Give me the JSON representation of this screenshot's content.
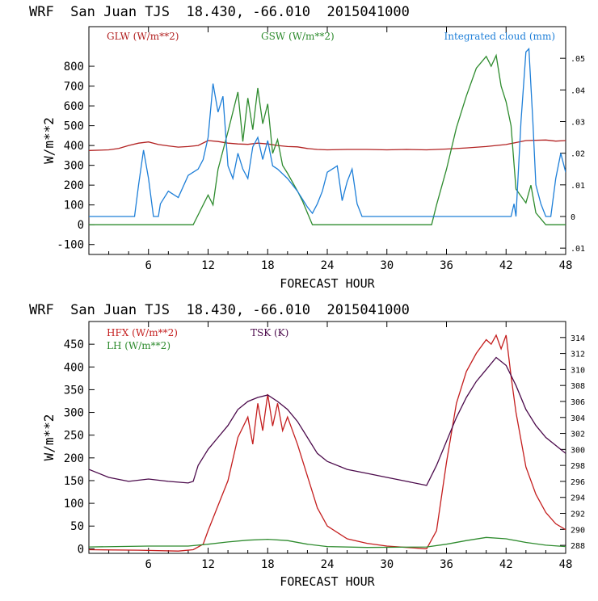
{
  "chart_data": [
    {
      "type": "line",
      "title": "WRF  San Juan TJS  18.430, -66.010  2015041000",
      "xlabel": "FORECAST HOUR",
      "ylabel": "W/m**2",
      "xlim": [
        0,
        48
      ],
      "ylim": [
        -150,
        1000
      ],
      "y2lim": [
        -0.012,
        0.06
      ],
      "xticks": [
        6,
        12,
        18,
        24,
        30,
        36,
        42,
        48
      ],
      "yticks": [
        -100,
        0,
        100,
        200,
        300,
        400,
        500,
        600,
        700,
        800
      ],
      "yticklabels": [
        "-100",
        "0",
        "100",
        "200",
        "300",
        "400",
        "500",
        "600",
        "700",
        "800"
      ],
      "y2ticks": [
        -0.01,
        0,
        0.01,
        0.02,
        0.03,
        0.04,
        0.05
      ],
      "y2ticklabels": [
        ".01",
        "0",
        ".01",
        ".02",
        ".03",
        ".04",
        ".05"
      ],
      "legend_position": "top",
      "series": [
        {
          "name": "GLW (W/m**2)",
          "color": "#b22222",
          "axis": "left",
          "x": [
            0,
            2,
            3,
            4,
            5,
            6,
            7,
            8,
            9,
            10,
            11,
            12,
            13,
            14,
            15,
            16,
            17,
            18,
            19,
            20,
            21,
            22,
            23,
            24,
            26,
            28,
            30,
            32,
            34,
            36,
            38,
            40,
            42,
            44,
            46,
            47,
            48
          ],
          "y": [
            375,
            378,
            385,
            400,
            412,
            418,
            405,
            398,
            392,
            395,
            400,
            425,
            420,
            412,
            408,
            406,
            412,
            408,
            400,
            395,
            393,
            385,
            380,
            378,
            380,
            380,
            378,
            380,
            378,
            382,
            388,
            395,
            405,
            425,
            428,
            422,
            425
          ]
        },
        {
          "name": "GSW (W/m**2)",
          "color": "#2e8b2e",
          "axis": "left",
          "x": [
            0,
            10.5,
            11,
            12,
            12.5,
            13,
            14,
            15,
            15.5,
            16,
            16.5,
            17,
            17.5,
            18,
            18.5,
            19,
            19.5,
            20,
            21,
            21.5,
            22,
            22.5,
            34.5,
            35,
            36,
            37,
            38,
            39,
            40,
            40.5,
            41,
            41.5,
            42,
            42.5,
            43,
            44,
            44.5,
            45,
            46,
            48
          ],
          "y": [
            0,
            0,
            50,
            150,
            100,
            280,
            470,
            670,
            420,
            640,
            480,
            690,
            510,
            610,
            360,
            430,
            300,
            260,
            170,
            120,
            60,
            0,
            0,
            100,
            280,
            490,
            650,
            790,
            850,
            800,
            855,
            700,
            620,
            500,
            180,
            110,
            200,
            60,
            0,
            0
          ]
        },
        {
          "name": "Integrated cloud (mm)",
          "color": "#1e7fd8",
          "axis": "right",
          "x": [
            0,
            4.6,
            5,
            5.5,
            6,
            6.5,
            7,
            7.2,
            8,
            9,
            10,
            11,
            11.5,
            12,
            12.5,
            13,
            13.5,
            14,
            14.5,
            15,
            15.5,
            16,
            16.5,
            17,
            17.5,
            18,
            18.5,
            19,
            20,
            21,
            22,
            22.5,
            23,
            23.5,
            24,
            25,
            25.5,
            26,
            26.5,
            27,
            27.5,
            42.5,
            42.8,
            43,
            43.5,
            44,
            44.3,
            44.7,
            45,
            45.5,
            46,
            46.5,
            47,
            47.5,
            48
          ],
          "y": [
            0,
            0,
            0.01,
            0.021,
            0.012,
            0,
            0,
            0.004,
            0.008,
            0.006,
            0.013,
            0.015,
            0.018,
            0.025,
            0.042,
            0.033,
            0.038,
            0.016,
            0.012,
            0.02,
            0.015,
            0.012,
            0.022,
            0.025,
            0.018,
            0.024,
            0.016,
            0.015,
            0.012,
            0.008,
            0.003,
            0.001,
            0.004,
            0.008,
            0.014,
            0.016,
            0.005,
            0.011,
            0.015,
            0.004,
            0,
            0,
            0.004,
            0,
            0.03,
            0.052,
            0.053,
            0.03,
            0.01,
            0.004,
            0,
            0,
            0.012,
            0.02,
            0.014
          ]
        }
      ]
    },
    {
      "type": "line",
      "title": "WRF  San Juan TJS  18.430, -66.010  2015041000",
      "xlabel": "FORECAST HOUR",
      "ylabel": "W/m**2",
      "xlim": [
        0,
        48
      ],
      "ylim": [
        -10,
        500
      ],
      "y2lim": [
        287,
        316
      ],
      "xticks": [
        6,
        12,
        18,
        24,
        30,
        36,
        42,
        48
      ],
      "yticks": [
        0,
        50,
        100,
        150,
        200,
        250,
        300,
        350,
        400,
        450
      ],
      "yticklabels": [
        "0",
        "50",
        "100",
        "150",
        "200",
        "250",
        "300",
        "350",
        "400",
        "450"
      ],
      "y2ticks": [
        288,
        290,
        292,
        294,
        296,
        298,
        300,
        302,
        304,
        306,
        308,
        310,
        312,
        314
      ],
      "y2ticklabels": [
        "288",
        "290",
        "292",
        "294",
        "296",
        "298",
        "300",
        "302",
        "304",
        "306",
        "308",
        "310",
        "312",
        "314"
      ],
      "legend_position": "top-left",
      "series": [
        {
          "name": "HFX (W/m**2)",
          "color": "#c41e1e",
          "axis": "left",
          "x": [
            0,
            5,
            9,
            10.5,
            11.5,
            12,
            13,
            14,
            15,
            16,
            16.5,
            17,
            17.5,
            18,
            18.5,
            19,
            19.5,
            20,
            21,
            22,
            23,
            24,
            26,
            28,
            30,
            32,
            34,
            35,
            36,
            37,
            38,
            39,
            40,
            40.5,
            41,
            41.5,
            42,
            42.5,
            43,
            44,
            45,
            46,
            47,
            48
          ],
          "y": [
            -2,
            -3,
            -5,
            -2,
            10,
            40,
            95,
            150,
            245,
            290,
            230,
            320,
            260,
            340,
            270,
            320,
            260,
            290,
            230,
            160,
            90,
            50,
            22,
            12,
            6,
            3,
            0,
            40,
            190,
            320,
            390,
            430,
            460,
            450,
            470,
            440,
            470,
            380,
            300,
            180,
            120,
            80,
            55,
            42
          ]
        },
        {
          "name": "LH (W/m**2)",
          "color": "#2e8b2e",
          "axis": "left",
          "x": [
            0,
            6,
            10,
            12,
            14,
            16,
            18,
            20,
            22,
            24,
            28,
            34,
            36,
            38,
            40,
            42,
            44,
            46,
            48
          ],
          "y": [
            4,
            6,
            6,
            10,
            15,
            19,
            21,
            18,
            10,
            5,
            3,
            4,
            10,
            18,
            25,
            22,
            14,
            8,
            5
          ],
          "display_below_legend": true
        },
        {
          "name": "TSK (K)",
          "color": "#4b0a4b",
          "axis": "right",
          "x": [
            0,
            2,
            4,
            6,
            8,
            10,
            10.5,
            11,
            12,
            13,
            14,
            15,
            16,
            17,
            18,
            19,
            20,
            21,
            22,
            23,
            24,
            26,
            28,
            30,
            32,
            34,
            35,
            36,
            37,
            38,
            39,
            40,
            41,
            42,
            43,
            44,
            45,
            46,
            47,
            48
          ],
          "y": [
            297.5,
            296.5,
            296.0,
            296.3,
            296.0,
            295.8,
            296.0,
            298.0,
            300.0,
            301.5,
            303.0,
            305.0,
            306.0,
            306.5,
            306.8,
            306.0,
            305.0,
            303.5,
            301.5,
            299.5,
            298.5,
            297.5,
            297.0,
            296.5,
            296.0,
            295.5,
            298.0,
            301.0,
            304.0,
            306.5,
            308.5,
            310.0,
            311.5,
            310.5,
            308.0,
            305.0,
            303.0,
            301.5,
            300.5,
            299.5
          ]
        }
      ]
    }
  ]
}
